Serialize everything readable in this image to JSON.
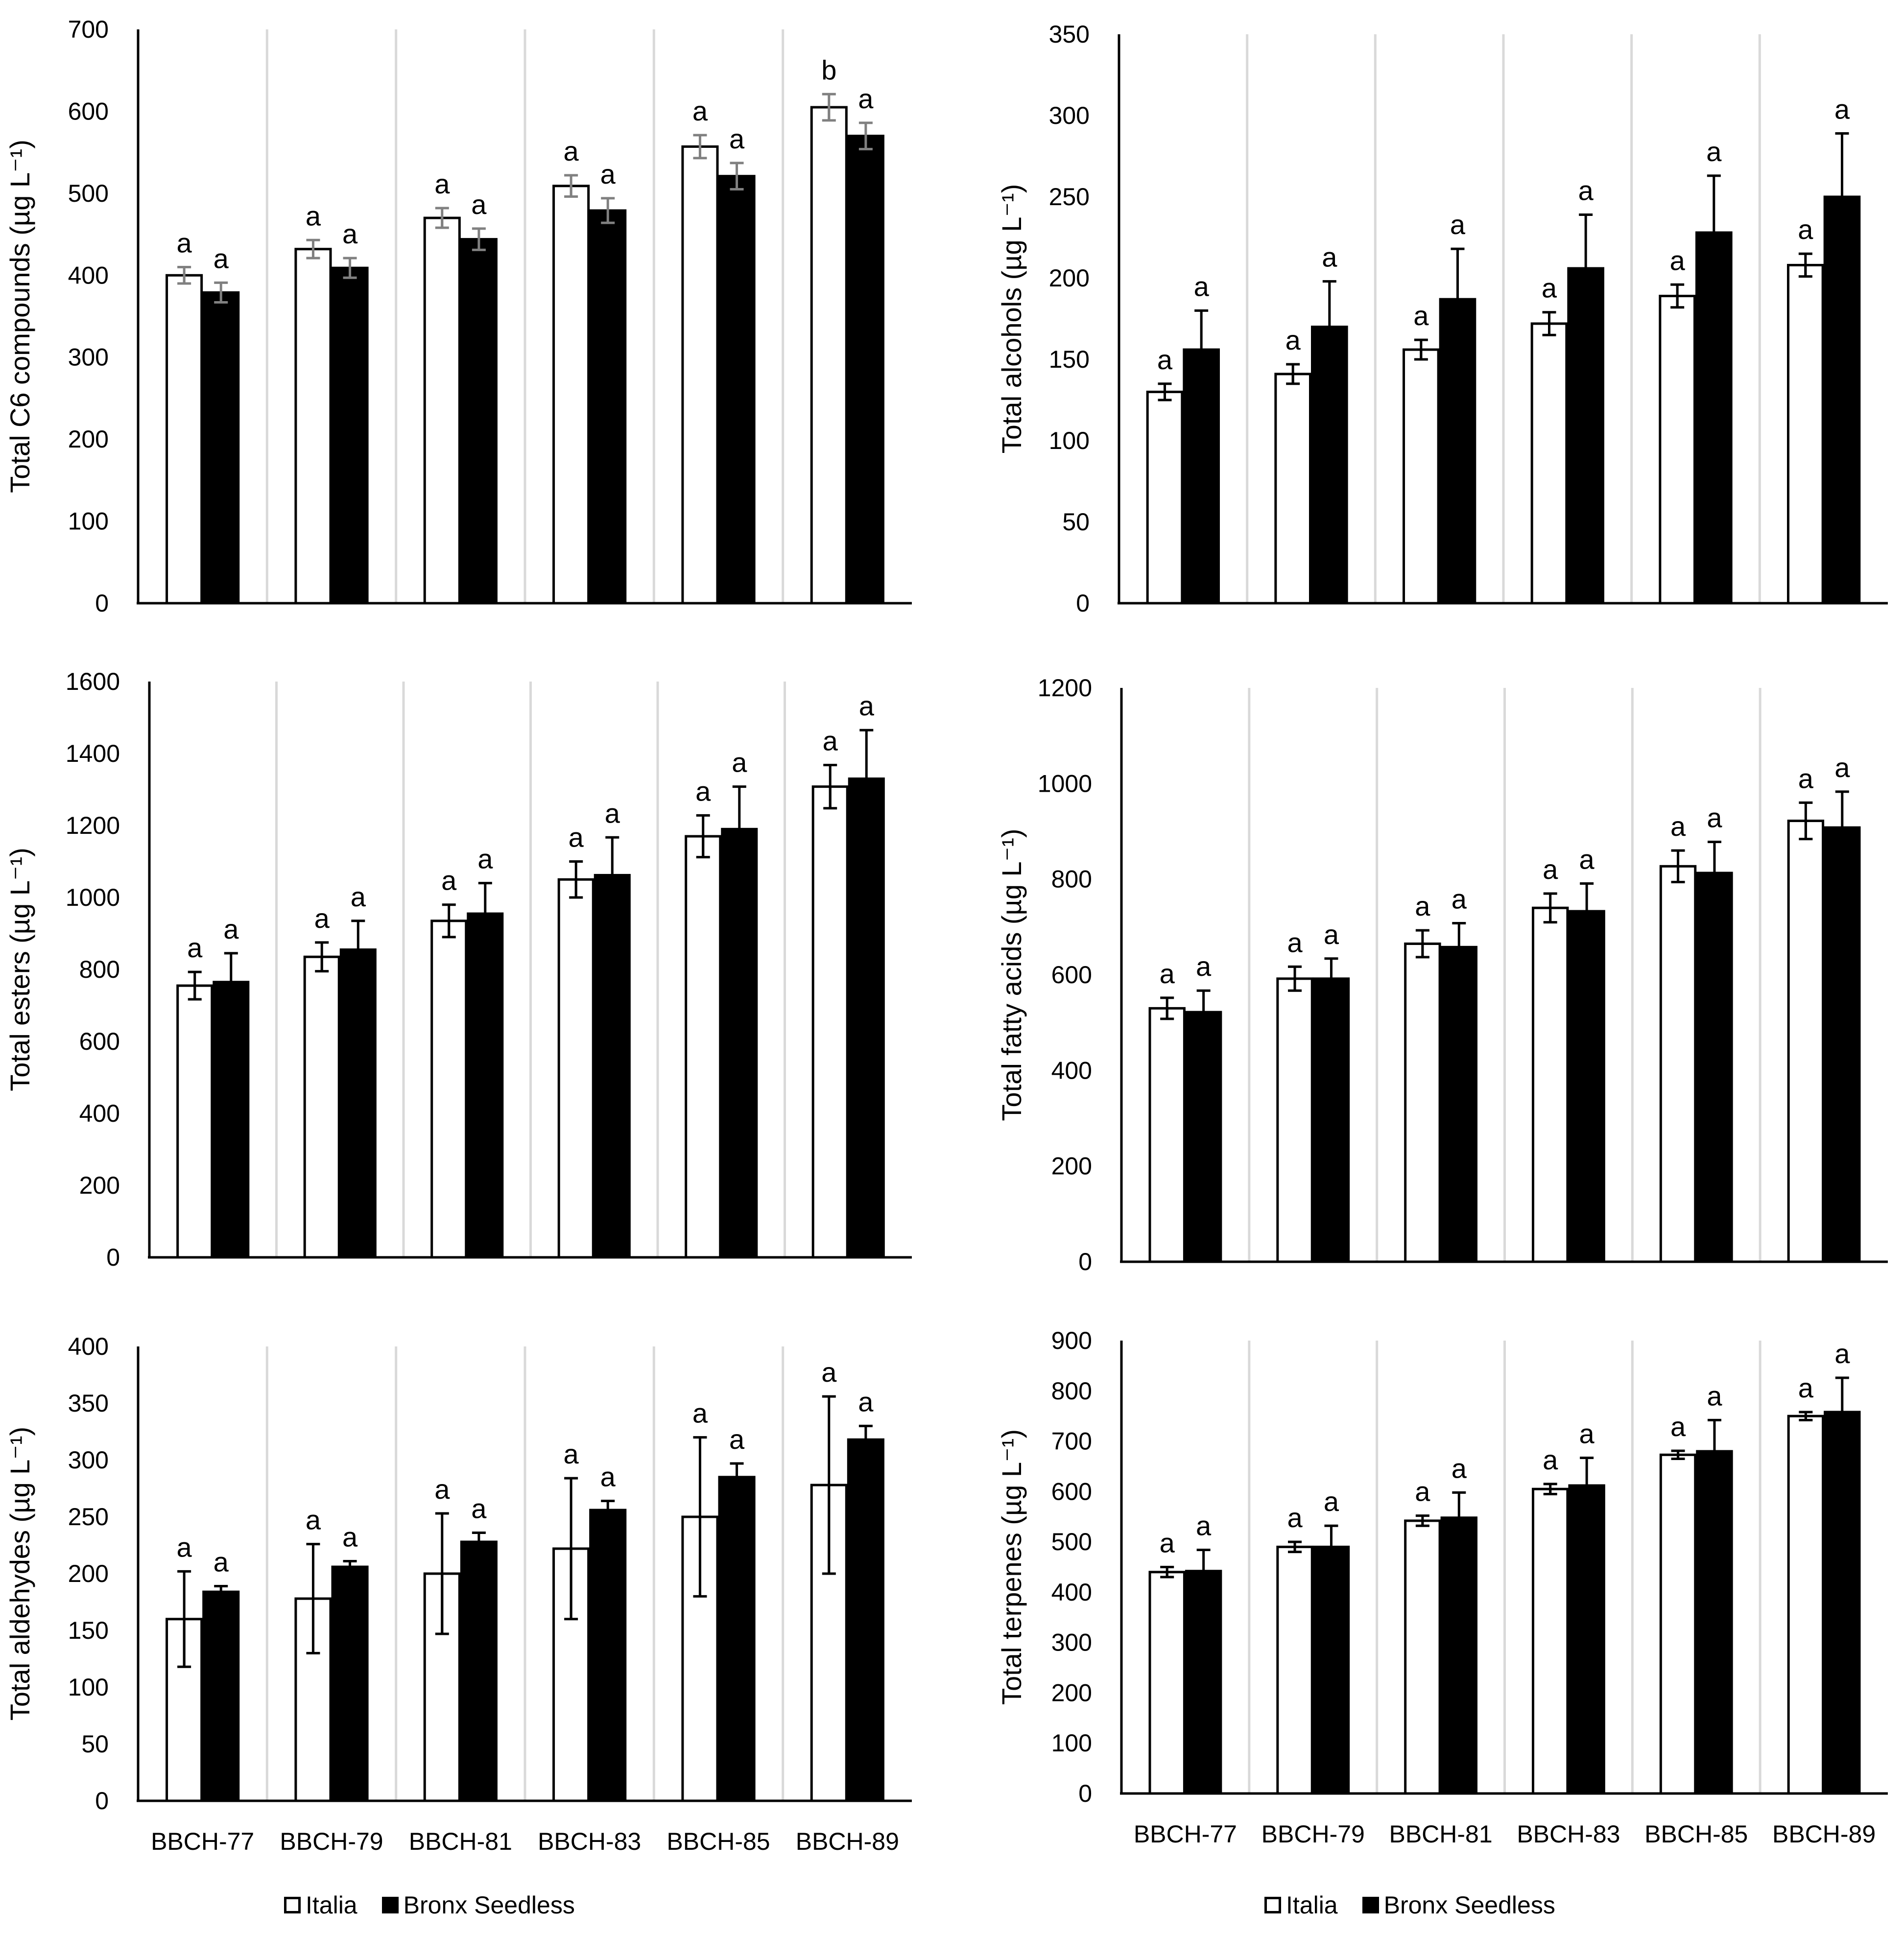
{
  "series_names": [
    "Italia",
    "Bronx Seedless"
  ],
  "colors": {
    "italia": "#ffffff",
    "bronx": "#000000",
    "grid": "#d9d9d9",
    "axis": "#000000",
    "errbar_gray": "#808080"
  },
  "chart_data": [
    {
      "type": "bar",
      "ylabel": "Total C6 compounds (µg L⁻¹)",
      "ylim": [
        0,
        700
      ],
      "ystep": 100,
      "categories": [
        "BBCH-77",
        "BBCH-79",
        "BBCH-81",
        "BBCH-83",
        "BBCH-85",
        "BBCH-89"
      ],
      "show_xticks": false,
      "series": [
        {
          "name": "Italia",
          "values": [
            400,
            432,
            470,
            509,
            557,
            605
          ],
          "errors": [
            10,
            11,
            12,
            13,
            14,
            16
          ],
          "letters": [
            "a",
            "a",
            "a",
            "a",
            "a",
            "b"
          ]
        },
        {
          "name": "Bronx Seedless",
          "values": [
            379,
            409,
            444,
            479,
            521,
            570
          ],
          "errors": [
            12,
            12,
            13,
            15,
            16,
            16
          ],
          "letters": [
            "a",
            "a",
            "a",
            "a",
            "a",
            "a"
          ]
        }
      ],
      "error_color": "gray"
    },
    {
      "type": "bar",
      "ylabel": "Total alcohols (µg L⁻¹)",
      "ylim": [
        0,
        350
      ],
      "ystep": 50,
      "categories": [
        "BBCH-77",
        "BBCH-79",
        "BBCH-81",
        "BBCH-83",
        "BBCH-85",
        "BBCH-89"
      ],
      "show_xticks": false,
      "series": [
        {
          "name": "Italia",
          "values": [
            130,
            141,
            156,
            172,
            189,
            208
          ],
          "errors": [
            5,
            6,
            6,
            7,
            7,
            7
          ],
          "letters": [
            "a",
            "a",
            "a",
            "a",
            "a",
            "a"
          ]
        },
        {
          "name": "Bronx Seedless",
          "values": [
            156,
            170,
            187,
            206,
            228,
            250
          ],
          "errors": [
            24,
            28,
            31,
            33,
            35,
            39
          ],
          "letters": [
            "a",
            "a",
            "a",
            "a",
            "a",
            "a"
          ]
        }
      ],
      "error_color": "black"
    },
    {
      "type": "bar",
      "ylabel": "Total esters (µg L⁻¹)",
      "ylim": [
        0,
        1600
      ],
      "ystep": 200,
      "categories": [
        "BBCH-77",
        "BBCH-79",
        "BBCH-81",
        "BBCH-83",
        "BBCH-85",
        "BBCH-89"
      ],
      "show_xticks": false,
      "series": [
        {
          "name": "Italia",
          "values": [
            755,
            835,
            935,
            1050,
            1170,
            1308
          ],
          "errors": [
            38,
            40,
            45,
            50,
            58,
            60
          ],
          "letters": [
            "a",
            "a",
            "a",
            "a",
            "a",
            "a"
          ]
        },
        {
          "name": "Bronx Seedless",
          "values": [
            765,
            855,
            955,
            1062,
            1190,
            1330
          ],
          "errors": [
            80,
            80,
            85,
            105,
            118,
            135
          ],
          "letters": [
            "a",
            "a",
            "a",
            "a",
            "a",
            "a"
          ]
        }
      ],
      "error_color": "black"
    },
    {
      "type": "bar",
      "ylabel": "Total fatty acids (µg L⁻¹)",
      "ylim": [
        0,
        1200
      ],
      "ystep": 200,
      "categories": [
        "BBCH-77",
        "BBCH-79",
        "BBCH-81",
        "BBCH-83",
        "BBCH-85",
        "BBCH-89"
      ],
      "show_xticks": false,
      "series": [
        {
          "name": "Italia",
          "values": [
            530,
            592,
            665,
            740,
            827,
            922
          ],
          "errors": [
            22,
            25,
            28,
            30,
            33,
            38
          ],
          "letters": [
            "a",
            "a",
            "a",
            "a",
            "a",
            "a"
          ]
        },
        {
          "name": "Bronx Seedless",
          "values": [
            522,
            592,
            658,
            733,
            813,
            908
          ],
          "errors": [
            45,
            42,
            50,
            58,
            65,
            75
          ],
          "letters": [
            "a",
            "a",
            "a",
            "a",
            "a",
            "a"
          ]
        }
      ],
      "error_color": "black"
    },
    {
      "type": "bar",
      "ylabel": "Total aldehydes (µg L⁻¹)",
      "ylim": [
        0,
        400
      ],
      "ystep": 50,
      "categories": [
        "BBCH-77",
        "BBCH-79",
        "BBCH-81",
        "BBCH-83",
        "BBCH-85",
        "BBCH-89"
      ],
      "show_xticks": true,
      "series": [
        {
          "name": "Italia",
          "values": [
            160,
            178,
            200,
            222,
            250,
            278
          ],
          "errors": [
            42,
            48,
            53,
            62,
            70,
            78
          ],
          "letters": [
            "a",
            "a",
            "a",
            "a",
            "a",
            "a"
          ]
        },
        {
          "name": "Bronx Seedless",
          "values": [
            184,
            206,
            228,
            256,
            285,
            318
          ],
          "errors": [
            5,
            5,
            8,
            8,
            12,
            12
          ],
          "letters": [
            "a",
            "a",
            "a",
            "a",
            "a",
            "a"
          ]
        }
      ],
      "error_color": "black"
    },
    {
      "type": "bar",
      "ylabel": "Total terpenes (µg L⁻¹)",
      "ylim": [
        0,
        900
      ],
      "ystep": 100,
      "categories": [
        "BBCH-77",
        "BBCH-79",
        "BBCH-81",
        "BBCH-83",
        "BBCH-85",
        "BBCH-89"
      ],
      "show_xticks": true,
      "series": [
        {
          "name": "Italia",
          "values": [
            440,
            490,
            542,
            605,
            673,
            750
          ],
          "errors": [
            10,
            10,
            10,
            10,
            8,
            8
          ],
          "letters": [
            "a",
            "a",
            "a",
            "a",
            "a",
            "a"
          ]
        },
        {
          "name": "Bronx Seedless",
          "values": [
            442,
            490,
            548,
            612,
            680,
            758
          ],
          "errors": [
            42,
            42,
            50,
            55,
            62,
            68
          ],
          "letters": [
            "a",
            "a",
            "a",
            "a",
            "a",
            "a"
          ]
        }
      ],
      "error_color": "black"
    }
  ]
}
